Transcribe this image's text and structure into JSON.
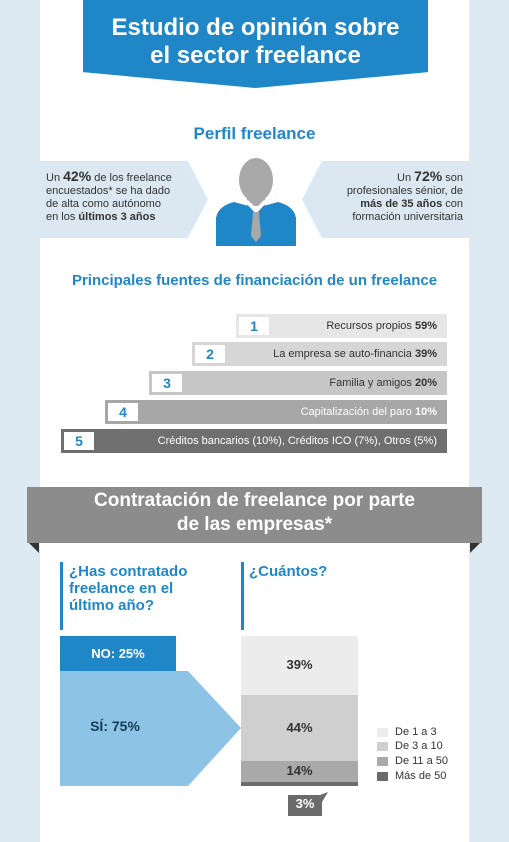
{
  "title": {
    "line1": "Estudio de opinión sobre",
    "line2": "el sector freelance"
  },
  "perfil": {
    "heading": "Perfil freelance",
    "left": {
      "pre": "Un ",
      "pct": "42%",
      "rest1": " de los freelance",
      "line2": "encuestados* se ha dado",
      "line3": "de alta como autónomo",
      "line4pre": "en los ",
      "line4b": "últimos 3 años"
    },
    "right": {
      "pre": "Un ",
      "pct": "72%",
      "rest1": " son",
      "line2": "profesionales sénior, de",
      "line3b": "más de 35 años",
      "line3rest": " con",
      "line4": "formación universitaria"
    }
  },
  "financiacion": {
    "heading": "Principales fuentes de financiación de un freelance",
    "steps": [
      {
        "num": "1",
        "label": "Recursos propios ",
        "value": "59%",
        "color": "#e6e6e6"
      },
      {
        "num": "2",
        "label": "La empresa se auto-financia ",
        "value": "39%",
        "color": "#d6d6d6"
      },
      {
        "num": "3",
        "label": "Familia y amigos ",
        "value": "20%",
        "color": "#c6c6c6"
      },
      {
        "num": "4",
        "label": "Capitalización del paro ",
        "value": "10%",
        "color": "#a7a7a7"
      },
      {
        "num": "5",
        "label": "Créditos bancarios (10%), Créditos ICO (7%), Otros (5%)",
        "value": "",
        "color": "#6f6f6f"
      }
    ]
  },
  "contratacion": {
    "heading_line1": "Contratación de freelance por parte",
    "heading_line2": "de las empresas*",
    "q1": {
      "l1": "¿Has contratado",
      "l2": "freelance en el",
      "l3": "último año?"
    },
    "q2": "¿Cuántos?",
    "no_label": "NO: 25%",
    "si_label": "SÍ: 75%",
    "stack": [
      {
        "label": "39%",
        "value": 39,
        "color": "#ececec"
      },
      {
        "label": "44%",
        "value": 44,
        "color": "#cfcfcf"
      },
      {
        "label": "14%",
        "value": 14,
        "color": "#a9a9a9"
      },
      {
        "label": "3%",
        "value": 3,
        "color": "#6b6b6b"
      }
    ],
    "legend": [
      {
        "label": "De 1 a 3",
        "color": "#ececec"
      },
      {
        "label": "De 3 a 10",
        "color": "#cfcfcf"
      },
      {
        "label": "De 11 a 50",
        "color": "#a9a9a9"
      },
      {
        "label": "Más de 50",
        "color": "#6b6b6b"
      }
    ]
  },
  "colors": {
    "blue": "#1f87c7",
    "light_blue": "#8dc3e4",
    "bg": "#dde9f3"
  }
}
